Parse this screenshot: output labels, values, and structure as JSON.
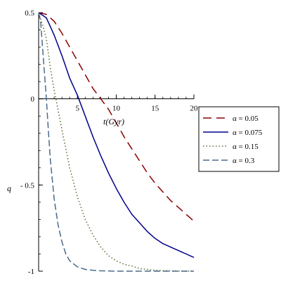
{
  "chart_data": {
    "type": "line",
    "title": "",
    "xlabel": "t(Gyr)",
    "ylabel": "q",
    "xlim": [
      0,
      20
    ],
    "ylim": [
      -1,
      0.5
    ],
    "xticks": [
      5,
      10,
      15,
      20
    ],
    "xtick_labels": [
      "5",
      "10",
      "15",
      "20"
    ],
    "yticks": [
      -1,
      -0.5,
      0,
      0.5
    ],
    "ytick_labels": [
      "-1",
      "- 0.5",
      "0",
      "0.5"
    ],
    "grid": false,
    "legend_position": "right",
    "series": [
      {
        "name": "α = 0.05",
        "color": "#8b0000",
        "style": "dash-long",
        "x": [
          0,
          1,
          2,
          3,
          4,
          5,
          6,
          7,
          8,
          9,
          10,
          11,
          12,
          13,
          14,
          15,
          16,
          17,
          18,
          19,
          20
        ],
        "y": [
          0.5,
          0.49,
          0.45,
          0.38,
          0.3,
          0.22,
          0.14,
          0.06,
          0.0,
          -0.06,
          -0.14,
          -0.22,
          -0.29,
          -0.36,
          -0.43,
          -0.49,
          -0.54,
          -0.59,
          -0.63,
          -0.67,
          -0.71
        ]
      },
      {
        "name": "α = 0.075",
        "color": "#00008b",
        "style": "solid",
        "x": [
          0,
          1,
          2,
          3,
          4,
          5,
          6,
          7,
          8,
          9,
          10,
          11,
          12,
          13,
          14,
          15,
          16,
          17,
          18,
          19,
          20
        ],
        "y": [
          0.5,
          0.47,
          0.37,
          0.25,
          0.12,
          0.02,
          -0.1,
          -0.22,
          -0.33,
          -0.43,
          -0.52,
          -0.6,
          -0.67,
          -0.72,
          -0.77,
          -0.81,
          -0.84,
          -0.86,
          -0.88,
          -0.9,
          -0.92
        ]
      },
      {
        "name": "α = 0.15",
        "color": "#556b2f",
        "style": "dot",
        "x": [
          0,
          0.5,
          1,
          1.5,
          2,
          3,
          4,
          5,
          6,
          7,
          8,
          9,
          10,
          11,
          12,
          13,
          14,
          15,
          16,
          17,
          18,
          19,
          20
        ],
        "y": [
          0.5,
          0.43,
          0.35,
          0.18,
          0.05,
          -0.18,
          -0.4,
          -0.57,
          -0.7,
          -0.79,
          -0.86,
          -0.91,
          -0.94,
          -0.96,
          -0.97,
          -0.985,
          -0.99,
          -0.995,
          -0.997,
          -0.998,
          -0.999,
          -1.0,
          -1.0
        ]
      },
      {
        "name": "α = 0.3",
        "color": "#4b6a8b",
        "style": "dash-medium",
        "x": [
          0,
          0.25,
          0.5,
          0.75,
          1,
          1.25,
          1.5,
          2,
          2.5,
          3,
          3.5,
          4,
          5,
          6,
          7,
          8,
          10,
          12,
          14,
          16,
          18,
          20
        ],
        "y": [
          0.5,
          0.45,
          0.3,
          0.15,
          0.0,
          -0.18,
          -0.35,
          -0.58,
          -0.73,
          -0.83,
          -0.9,
          -0.94,
          -0.975,
          -0.99,
          -0.995,
          -0.998,
          -1.0,
          -1.0,
          -1.0,
          -1.0,
          -1.0,
          -1.0
        ]
      }
    ]
  }
}
